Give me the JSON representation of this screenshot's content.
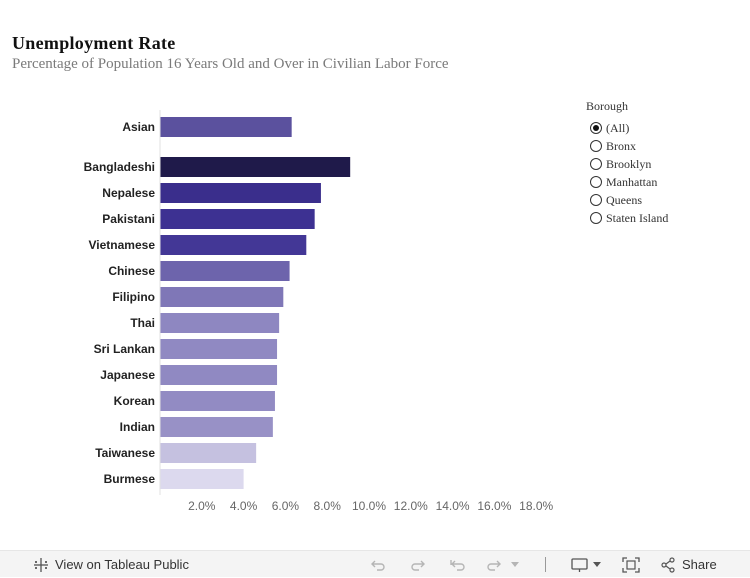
{
  "title": "Unemployment  Rate",
  "subtitle": "Percentage of Population 16 Years Old and Over in Civilian Labor Force",
  "chart_data": {
    "type": "bar",
    "orientation": "horizontal",
    "categories": [
      "Asian",
      "Bangladeshi",
      "Nepalese",
      "Pakistani",
      "Vietnamese",
      "Chinese",
      "Filipino",
      "Thai",
      "Sri Lankan",
      "Japanese",
      "Korean",
      "Indian",
      "Taiwanese",
      "Burmese"
    ],
    "values": [
      6.3,
      9.1,
      7.7,
      7.4,
      7.0,
      6.2,
      5.9,
      5.7,
      5.6,
      5.6,
      5.5,
      5.4,
      4.6,
      4.0
    ],
    "bar_colors": [
      "#5b519e",
      "#1f1a4a",
      "#3a2e8c",
      "#3d3192",
      "#433796",
      "#6d64ac",
      "#7f77b7",
      "#8e87c1",
      "#9089c2",
      "#9089c2",
      "#928bc3",
      "#9891c6",
      "#c5c1e0",
      "#dcd9ee"
    ],
    "xticks": [
      "2.0%",
      "4.0%",
      "6.0%",
      "8.0%",
      "10.0%",
      "12.0%",
      "14.0%",
      "16.0%",
      "18.0%"
    ],
    "xlim": [
      0,
      19
    ],
    "xlabel": "",
    "ylabel": ""
  },
  "filter": {
    "title": "Borough",
    "options": [
      "(All)",
      "Bronx",
      "Brooklyn",
      "Manhattan",
      "Queens",
      "Staten Island"
    ],
    "selected": "(All)"
  },
  "footer": {
    "view_label": "View on Tableau Public",
    "share_label": "Share"
  }
}
